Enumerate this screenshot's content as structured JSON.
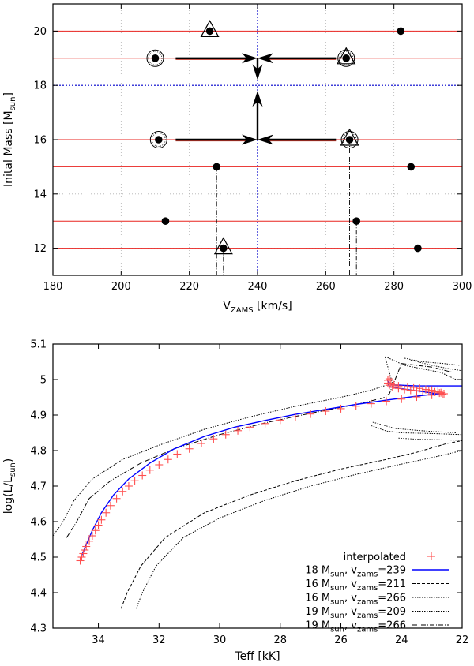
{
  "chart_data": [
    {
      "type": "scatter",
      "xlabel": "V",
      "xlabel_sub": "ZAMS",
      "xlabel_unit": " [km/s]",
      "ylabel": "Inital Mass [M",
      "ylabel_sub": "sun",
      "ylabel_end": "]",
      "xlim": [
        180,
        300
      ],
      "ylim": [
        11,
        21
      ],
      "xticks": [
        180,
        200,
        220,
        240,
        260,
        280,
        300
      ],
      "yticks": [
        12,
        14,
        16,
        18,
        20
      ],
      "grid": true,
      "mass_lines": [
        12,
        13,
        15,
        16,
        19,
        20
      ],
      "target": {
        "v": 240,
        "m": 18
      },
      "points": [
        {
          "v": 226,
          "m": 20
        },
        {
          "v": 282,
          "m": 20
        },
        {
          "v": 210,
          "m": 19
        },
        {
          "v": 266,
          "m": 19
        },
        {
          "v": 211,
          "m": 16
        },
        {
          "v": 267,
          "m": 16
        },
        {
          "v": 228,
          "m": 15
        },
        {
          "v": 285,
          "m": 15
        },
        {
          "v": 213,
          "m": 13
        },
        {
          "v": 269,
          "m": 13
        },
        {
          "v": 230,
          "m": 12
        },
        {
          "v": 287,
          "m": 12
        }
      ],
      "circled": [
        {
          "v": 210,
          "m": 19
        },
        {
          "v": 266,
          "m": 19
        },
        {
          "v": 211,
          "m": 16
        },
        {
          "v": 267,
          "m": 16
        }
      ],
      "triangles": [
        {
          "v": 226,
          "m": 20
        },
        {
          "v": 266,
          "m": 19
        },
        {
          "v": 267,
          "m": 16
        },
        {
          "v": 230,
          "m": 12
        }
      ],
      "arrows": [
        {
          "from": [
            216,
            19
          ],
          "to": [
            240,
            19
          ]
        },
        {
          "from": [
            263,
            19
          ],
          "to": [
            240,
            19
          ]
        },
        {
          "from": [
            240,
            19
          ],
          "to": [
            240,
            18.2
          ]
        },
        {
          "from": [
            216,
            16
          ],
          "to": [
            240,
            16
          ]
        },
        {
          "from": [
            263,
            16
          ],
          "to": [
            240,
            16
          ]
        },
        {
          "from": [
            240,
            16
          ],
          "to": [
            240,
            17.8
          ]
        }
      ],
      "dropdowns": [
        {
          "v": 228,
          "m_top": 15
        },
        {
          "v": 230,
          "m_top": 12
        },
        {
          "v": 267,
          "m_top": 16
        },
        {
          "v": 269,
          "m_top": 13
        }
      ]
    },
    {
      "type": "line",
      "xlabel": "Teff [kK]",
      "ylabel": "log(L/L",
      "ylabel_sub": "sun",
      "ylabel_end": ")",
      "xlim": [
        35.5,
        22
      ],
      "ylim": [
        4.3,
        5.1
      ],
      "xticks": [
        34,
        32,
        30,
        28,
        26,
        24,
        22
      ],
      "yticks": [
        4.3,
        4.4,
        4.5,
        4.6,
        4.7,
        4.8,
        4.9,
        5.0,
        5.1
      ],
      "ytick_labels": [
        "4.3",
        "4.4",
        "4.5",
        "4.6",
        "4.7",
        "4.8",
        "4.9",
        "5",
        "5.1"
      ],
      "grid": false,
      "legend_position": "bottom-right",
      "interpolated_label": "interpolated",
      "series": [
        {
          "name": "18 M",
          "name_sub": "sun",
          "name_mid": ", v",
          "name_sub2": "zams",
          "name_end": "=239",
          "style": "solid",
          "color": "#0000ff",
          "points": [
            [
              34.6,
              4.495
            ],
            [
              34.45,
              4.525
            ],
            [
              34.2,
              4.575
            ],
            [
              33.9,
              4.625
            ],
            [
              33.5,
              4.675
            ],
            [
              33.0,
              4.72
            ],
            [
              32.3,
              4.765
            ],
            [
              31.5,
              4.805
            ],
            [
              30.5,
              4.84
            ],
            [
              29.5,
              4.866
            ],
            [
              28.5,
              4.885
            ],
            [
              27.5,
              4.902
            ],
            [
              26.5,
              4.916
            ],
            [
              25.5,
              4.93
            ],
            [
              24.5,
              4.942
            ],
            [
              23.5,
              4.953
            ],
            [
              22.6,
              4.962
            ],
            [
              22.7,
              4.958
            ],
            [
              23.3,
              4.966
            ],
            [
              24.0,
              4.974
            ],
            [
              24.4,
              4.98
            ],
            [
              24.45,
              4.995
            ],
            [
              24.3,
              4.985
            ],
            [
              23.5,
              4.982
            ],
            [
              22.0,
              4.982
            ]
          ]
        },
        {
          "name": "16 M",
          "name_sub": "sun",
          "name_mid": ", v",
          "name_sub2": "zams",
          "name_end": "=211",
          "style": "dashed",
          "color": "#000000",
          "points": [
            [
              33.25,
              4.355
            ],
            [
              33.05,
              4.4
            ],
            [
              32.6,
              4.475
            ],
            [
              31.8,
              4.555
            ],
            [
              30.5,
              4.625
            ],
            [
              29.0,
              4.675
            ],
            [
              27.5,
              4.715
            ],
            [
              26.0,
              4.748
            ],
            [
              24.5,
              4.775
            ],
            [
              23.5,
              4.795
            ],
            [
              22.5,
              4.82
            ],
            [
              22.0,
              4.828
            ]
          ]
        },
        {
          "name": "16 M",
          "name_sub": "sun",
          "name_mid": ", v",
          "name_sub2": "zams",
          "name_end": "=266",
          "style": "dotted",
          "color": "#000000",
          "points": [
            [
              32.75,
              4.355
            ],
            [
              32.55,
              4.4
            ],
            [
              32.1,
              4.475
            ],
            [
              31.2,
              4.555
            ],
            [
              30.0,
              4.61
            ],
            [
              28.5,
              4.66
            ],
            [
              27.0,
              4.7
            ],
            [
              25.5,
              4.733
            ],
            [
              24.0,
              4.762
            ],
            [
              23.0,
              4.78
            ],
            [
              22.0,
              4.8
            ]
          ]
        },
        {
          "name": "19 M",
          "name_sub": "sun",
          "name_mid": ", v",
          "name_sub2": "zams",
          "name_end": "=209",
          "style": "dotted",
          "color": "#000000",
          "points": [
            [
              35.5,
              4.56
            ],
            [
              35.2,
              4.595
            ],
            [
              34.8,
              4.66
            ],
            [
              34.2,
              4.72
            ],
            [
              33.2,
              4.775
            ],
            [
              32.0,
              4.815
            ],
            [
              30.5,
              4.86
            ],
            [
              29.0,
              4.895
            ],
            [
              27.5,
              4.925
            ],
            [
              26.0,
              4.95
            ],
            [
              25.0,
              4.97
            ],
            [
              24.3,
              4.99
            ],
            [
              24.55,
              5.065
            ],
            [
              23.9,
              5.04
            ],
            [
              22.7,
              5.02
            ],
            [
              22.2,
              5.0
            ]
          ]
        },
        {
          "name": "19 M",
          "name_sub": "sun",
          "name_mid": ", v",
          "name_sub2": "zams",
          "name_end": "=266",
          "style": "dashdot",
          "color": "#000000",
          "points": [
            [
              35.05,
              4.555
            ],
            [
              34.75,
              4.595
            ],
            [
              34.3,
              4.665
            ],
            [
              33.6,
              4.715
            ],
            [
              32.6,
              4.765
            ],
            [
              31.5,
              4.805
            ],
            [
              30.0,
              4.845
            ],
            [
              28.5,
              4.878
            ],
            [
              27.0,
              4.905
            ],
            [
              25.5,
              4.93
            ],
            [
              24.6,
              4.948
            ],
            [
              24.4,
              4.96
            ],
            [
              24.0,
              5.045
            ],
            [
              23.0,
              5.035
            ],
            [
              22.3,
              5.02
            ]
          ]
        }
      ],
      "extra_dotted_branches": [
        [
          [
            23.9,
            5.06
          ],
          [
            23.3,
            5.05
          ],
          [
            22.6,
            5.045
          ],
          [
            22.1,
            5.04
          ]
        ],
        [
          [
            23.7,
            5.055
          ],
          [
            23.0,
            5.04
          ],
          [
            22.4,
            5.03
          ],
          [
            22.0,
            5.025
          ]
        ],
        [
          [
            25.0,
            4.87
          ],
          [
            24.5,
            4.855
          ],
          [
            24.0,
            4.85
          ],
          [
            23.0,
            4.848
          ],
          [
            22.0,
            4.845
          ]
        ],
        [
          [
            24.95,
            4.88
          ],
          [
            24.2,
            4.862
          ],
          [
            23.2,
            4.855
          ],
          [
            22.2,
            4.85
          ]
        ],
        [
          [
            24.1,
            4.835
          ],
          [
            23.5,
            4.832
          ],
          [
            22.5,
            4.83
          ],
          [
            22.0,
            4.829
          ]
        ]
      ],
      "interpolated": [
        [
          34.6,
          4.49
        ],
        [
          34.55,
          4.5
        ],
        [
          34.5,
          4.51
        ],
        [
          34.45,
          4.52
        ],
        [
          34.4,
          4.53
        ],
        [
          34.3,
          4.545
        ],
        [
          34.2,
          4.56
        ],
        [
          34.1,
          4.575
        ],
        [
          34.0,
          4.59
        ],
        [
          33.9,
          4.605
        ],
        [
          33.75,
          4.625
        ],
        [
          33.6,
          4.645
        ],
        [
          33.4,
          4.665
        ],
        [
          33.2,
          4.685
        ],
        [
          33.0,
          4.7
        ],
        [
          32.8,
          4.715
        ],
        [
          32.55,
          4.73
        ],
        [
          32.3,
          4.745
        ],
        [
          32.0,
          4.76
        ],
        [
          31.7,
          4.775
        ],
        [
          31.4,
          4.79
        ],
        [
          31.0,
          4.805
        ],
        [
          30.6,
          4.82
        ],
        [
          30.2,
          4.833
        ],
        [
          29.8,
          4.845
        ],
        [
          29.4,
          4.856
        ],
        [
          29.0,
          4.866
        ],
        [
          28.5,
          4.876
        ],
        [
          28.0,
          4.886
        ],
        [
          27.5,
          4.895
        ],
        [
          27.0,
          4.903
        ],
        [
          26.5,
          4.911
        ],
        [
          26.0,
          4.918
        ],
        [
          25.5,
          4.925
        ],
        [
          25.0,
          4.932
        ],
        [
          24.5,
          4.939
        ],
        [
          24.0,
          4.945
        ],
        [
          23.5,
          4.951
        ],
        [
          23.0,
          4.956
        ],
        [
          22.6,
          4.96
        ],
        [
          22.65,
          4.958
        ],
        [
          22.75,
          4.962
        ],
        [
          22.9,
          4.965
        ],
        [
          23.1,
          4.967
        ],
        [
          23.3,
          4.968
        ],
        [
          23.5,
          4.969
        ],
        [
          23.7,
          4.97
        ],
        [
          23.9,
          4.972
        ],
        [
          24.1,
          4.975
        ],
        [
          24.3,
          4.978
        ],
        [
          24.4,
          4.984
        ],
        [
          24.45,
          4.99
        ],
        [
          24.45,
          4.998
        ],
        [
          24.4,
          5.002
        ],
        [
          24.35,
          4.99
        ],
        [
          24.25,
          4.985
        ],
        [
          24.1,
          4.982
        ],
        [
          23.8,
          4.98
        ],
        [
          23.6,
          4.978
        ],
        [
          23.4,
          4.975
        ],
        [
          23.2,
          4.972
        ],
        [
          23.0,
          4.97
        ],
        [
          22.8,
          4.966
        ],
        [
          22.7,
          4.963
        ]
      ]
    }
  ]
}
